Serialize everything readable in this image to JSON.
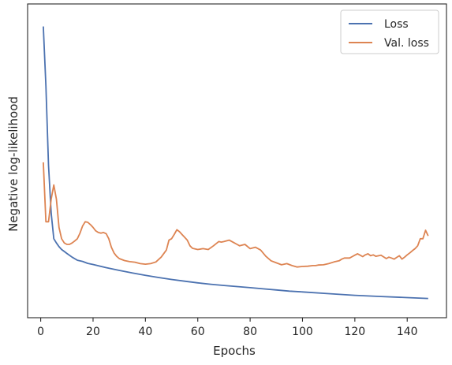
{
  "chart_data": {
    "type": "line",
    "title": "",
    "xlabel": "Epochs",
    "ylabel": "Negative log-likelihood",
    "xlim": [
      -5,
      155
    ],
    "ylim": [
      0,
      1
    ],
    "xticks": [
      0,
      20,
      40,
      60,
      80,
      100,
      120,
      140
    ],
    "yticks_shown": false,
    "grid": false,
    "legend": "top-right",
    "colors": {
      "loss": "#4c72b0",
      "val_loss": "#dd8452"
    },
    "series": [
      {
        "name": "Loss",
        "x": [
          1,
          2,
          3,
          4,
          5,
          6,
          7,
          8,
          9,
          10,
          12,
          14,
          16,
          18,
          20,
          25,
          30,
          35,
          40,
          45,
          50,
          55,
          60,
          65,
          70,
          75,
          80,
          85,
          90,
          95,
          100,
          110,
          120,
          130,
          140,
          148
        ],
        "values": [
          0.99,
          0.78,
          0.5,
          0.33,
          0.24,
          0.225,
          0.212,
          0.202,
          0.195,
          0.188,
          0.175,
          0.164,
          0.16,
          0.153,
          0.149,
          0.138,
          0.128,
          0.119,
          0.111,
          0.103,
          0.096,
          0.09,
          0.084,
          0.079,
          0.075,
          0.071,
          0.067,
          0.063,
          0.059,
          0.055,
          0.052,
          0.046,
          0.04,
          0.036,
          0.032,
          0.029
        ]
      },
      {
        "name": "Val. loss",
        "x": [
          1,
          2,
          3,
          4,
          5,
          6,
          7,
          8,
          9,
          10,
          11,
          12,
          13,
          14,
          15,
          16,
          17,
          18,
          19,
          20,
          21,
          22,
          23,
          24,
          25,
          26,
          27,
          28,
          29,
          30,
          32,
          34,
          36,
          38,
          40,
          42,
          44,
          46,
          48,
          49,
          50,
          51,
          52,
          53,
          54,
          55,
          56,
          57,
          58,
          60,
          62,
          64,
          66,
          68,
          69,
          70,
          72,
          74,
          75,
          76,
          78,
          80,
          82,
          84,
          86,
          88,
          90,
          92,
          94,
          96,
          98,
          100,
          102,
          104,
          105,
          106,
          108,
          110,
          112,
          114,
          115,
          116,
          118,
          119,
          120,
          121,
          122,
          123,
          124,
          125,
          126,
          127,
          128,
          130,
          132,
          133,
          134,
          135,
          136,
          137,
          138,
          139,
          140,
          141,
          142,
          143,
          144,
          145,
          146,
          147,
          148
        ],
        "values": [
          0.51,
          0.3,
          0.3,
          0.38,
          0.43,
          0.38,
          0.28,
          0.24,
          0.225,
          0.22,
          0.22,
          0.225,
          0.232,
          0.24,
          0.26,
          0.285,
          0.3,
          0.298,
          0.29,
          0.28,
          0.268,
          0.262,
          0.26,
          0.262,
          0.258,
          0.24,
          0.21,
          0.19,
          0.178,
          0.17,
          0.163,
          0.159,
          0.157,
          0.152,
          0.15,
          0.152,
          0.158,
          0.175,
          0.2,
          0.235,
          0.24,
          0.255,
          0.272,
          0.265,
          0.255,
          0.245,
          0.235,
          0.215,
          0.206,
          0.202,
          0.205,
          0.202,
          0.215,
          0.23,
          0.228,
          0.23,
          0.235,
          0.225,
          0.22,
          0.215,
          0.22,
          0.205,
          0.21,
          0.2,
          0.178,
          0.162,
          0.155,
          0.148,
          0.152,
          0.145,
          0.14,
          0.142,
          0.143,
          0.145,
          0.145,
          0.147,
          0.148,
          0.152,
          0.158,
          0.162,
          0.168,
          0.172,
          0.172,
          0.177,
          0.182,
          0.187,
          0.182,
          0.177,
          0.183,
          0.187,
          0.18,
          0.183,
          0.178,
          0.182,
          0.17,
          0.175,
          0.172,
          0.168,
          0.174,
          0.18,
          0.168,
          0.175,
          0.183,
          0.19,
          0.198,
          0.205,
          0.215,
          0.24,
          0.24,
          0.27,
          0.25
        ]
      }
    ]
  }
}
